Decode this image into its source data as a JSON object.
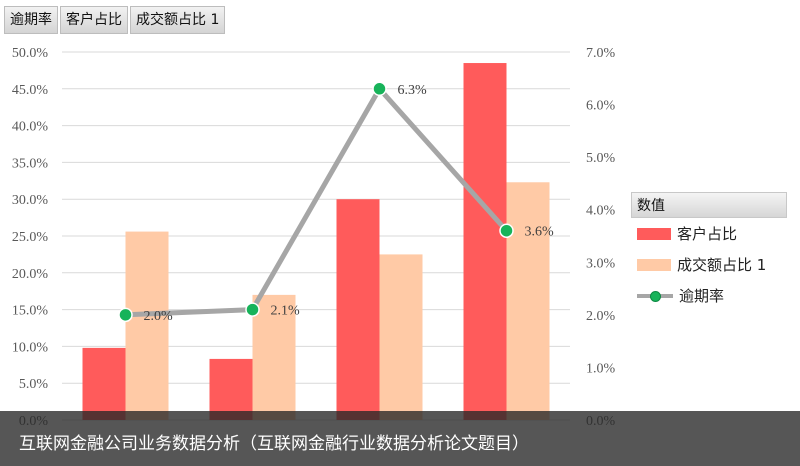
{
  "field_buttons": [
    "逾期率",
    "客户占比",
    "成交额占比 1"
  ],
  "legend": {
    "title": "数值",
    "items": [
      {
        "label": "客户占比",
        "kind": "bar",
        "color": "#ff5b5b"
      },
      {
        "label": "成交额占比 1",
        "kind": "bar",
        "color": "#ffcaa6"
      },
      {
        "label": "逾期率",
        "kind": "line",
        "color": "#a6a6a6",
        "marker_color": "#17b35a"
      }
    ]
  },
  "caption": "互联网金融公司业务数据分析（互联网金融行业数据分析论文题目）",
  "chart_data": {
    "type": "bar",
    "categories": [
      "",
      "",
      "",
      ""
    ],
    "series": [
      {
        "name": "客户占比",
        "type": "bar",
        "axis": "left",
        "values": [
          9.8,
          8.3,
          30.0,
          48.5
        ],
        "color": "#ff5b5b"
      },
      {
        "name": "成交额占比 1",
        "type": "bar",
        "axis": "left",
        "values": [
          25.6,
          17.0,
          22.5,
          32.3
        ],
        "color": "#ffcaa6"
      },
      {
        "name": "逾期率",
        "type": "line",
        "axis": "right",
        "values": [
          2.0,
          2.1,
          6.3,
          3.6
        ],
        "labels": [
          "2.0%",
          "2.1%",
          "6.3%",
          "3.6%"
        ],
        "color": "#a6a6a6",
        "marker_color": "#17b35a"
      }
    ],
    "y_left": {
      "ylim": [
        0,
        50
      ],
      "ticks": [
        "0.0%",
        "5.0%",
        "10.0%",
        "15.0%",
        "20.0%",
        "25.0%",
        "30.0%",
        "35.0%",
        "40.0%",
        "45.0%",
        "50.0%"
      ]
    },
    "y_right": {
      "ylim": [
        0,
        7
      ],
      "ticks": [
        "0.0%",
        "1.0%",
        "2.0%",
        "3.0%",
        "4.0%",
        "5.0%",
        "6.0%",
        "7.0%"
      ]
    },
    "grid": true,
    "legend_position": "right"
  }
}
